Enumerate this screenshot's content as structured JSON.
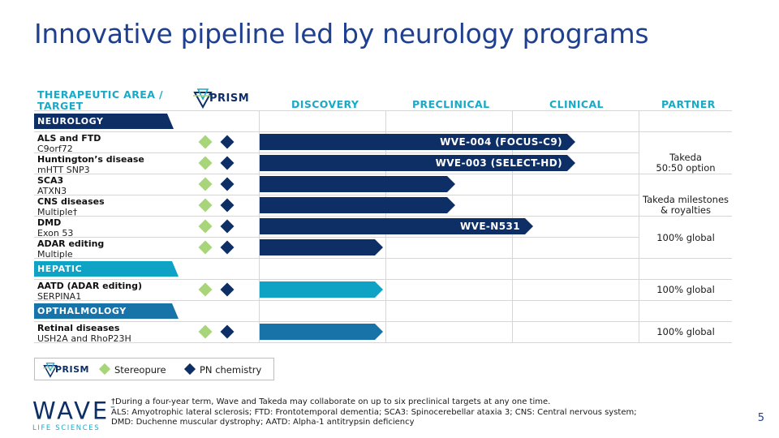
{
  "title": "Innovative pipeline led by neurology programs",
  "headers": {
    "area_line1": "THERAPEUTIC AREA /",
    "area_line2": "TARGET",
    "prism": "PRISM",
    "discovery": "DISCOVERY",
    "preclinical": "PRECLINICAL",
    "clinical": "CLINICAL",
    "partner": "PARTNER"
  },
  "sections": {
    "neurology": "NEUROLOGY",
    "hepatic": "HEPATIC",
    "opthalmology": "OPTHALMOLOGY"
  },
  "rows": [
    {
      "name": "ALS and FTD",
      "target": "C9orf72",
      "bar_label": "WVE-004 (FOCUS-C9)",
      "stage": "clinical"
    },
    {
      "name": "Huntington’s disease",
      "target": "mHTT SNP3",
      "bar_label": "WVE-003 (SELECT-HD)",
      "stage": "clinical"
    },
    {
      "name": "SCA3",
      "target": "ATXN3",
      "bar_label": "",
      "stage": "preclinical-late"
    },
    {
      "name": "CNS diseases",
      "target": "Multiple†",
      "bar_label": "",
      "stage": "preclinical-late"
    },
    {
      "name": "DMD",
      "target": "Exon 53",
      "bar_label": "WVE-N531",
      "stage": "clinical-early"
    },
    {
      "name": "ADAR editing",
      "target": "Multiple",
      "bar_label": "",
      "stage": "discovery"
    },
    {
      "name": "AATD (ADAR editing)",
      "target": "SERPINA1",
      "bar_label": "",
      "stage": "discovery"
    },
    {
      "name": "Retinal diseases",
      "target": "USH2A and RhoP23H",
      "bar_label": "",
      "stage": "discovery"
    }
  ],
  "partners": {
    "takeda_line1": "Takeda",
    "takeda_line2": "50:50 option",
    "milestones_line1": "Takeda milestones",
    "milestones_line2": "& royalties",
    "global_1": "100% global",
    "global_2": "100% global",
    "global_3": "100% global"
  },
  "legend": {
    "prism": "PRISM",
    "stereopure": "Stereopure",
    "pn": "PN chemistry"
  },
  "footnotes": {
    "line1": "†During a four-year term, Wave and Takeda may collaborate on up to six preclinical targets at any one time.",
    "line2": "ALS: Amyotrophic lateral sclerosis; FTD: Frontotemporal dementia; SCA3: Spinocerebellar ataxia 3; CNS: Central nervous system;",
    "line3": "DMD: Duchenne muscular dystrophy; AATD: Alpha-1 antitrypsin deficiency"
  },
  "logo": {
    "word": "WAVE",
    "tm": "™",
    "sub": "LIFE SCIENCES"
  },
  "page_number": "5",
  "colors": {
    "navy": "#0d2f66",
    "teal": "#0ea3c4",
    "green": "#a8d47a",
    "title": "#1f3f8f"
  }
}
